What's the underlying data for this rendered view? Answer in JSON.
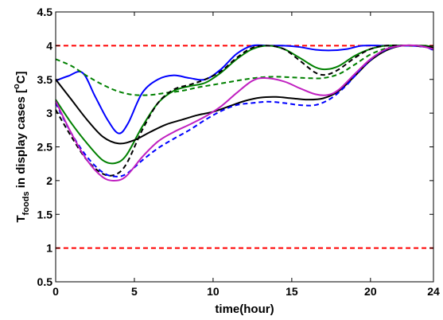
{
  "chart_data": {
    "type": "line",
    "title": "",
    "xlabel": "time(hour)",
    "ylabel": {
      "base": "T",
      "sub": "foods",
      "rest": " in display cases [",
      "sup": "o",
      "unit": "C]"
    },
    "xlim": [
      0,
      24
    ],
    "ylim": [
      0.5,
      4.5
    ],
    "xticks": [
      0,
      5,
      10,
      15,
      20,
      24
    ],
    "yticks": [
      0.5,
      1,
      1.5,
      2,
      2.5,
      3,
      3.5,
      4,
      4.5
    ],
    "xtick_labels": [
      "0",
      "5",
      "10",
      "15",
      "20",
      "24"
    ],
    "ytick_labels": [
      "0.5",
      "1",
      "1.5",
      "2",
      "2.5",
      "3",
      "3.5",
      "4",
      "4.5"
    ],
    "grid": false,
    "legend": "none",
    "series": [
      {
        "color": "#ff0000",
        "style": "dashed",
        "points": [
          [
            0,
            4.0
          ],
          [
            24,
            4.0
          ]
        ]
      },
      {
        "color": "#ff0000",
        "style": "dashed",
        "points": [
          [
            0,
            1.0
          ],
          [
            24,
            1.0
          ]
        ]
      },
      {
        "color": "#0000ff",
        "style": "solid",
        "points": [
          [
            0,
            3.48
          ],
          [
            0.8,
            3.55
          ],
          [
            1.7,
            3.6
          ],
          [
            2.5,
            3.25
          ],
          [
            3.3,
            2.9
          ],
          [
            4.0,
            2.7
          ],
          [
            4.6,
            2.85
          ],
          [
            5.5,
            3.3
          ],
          [
            6.5,
            3.5
          ],
          [
            7.5,
            3.56
          ],
          [
            8.5,
            3.52
          ],
          [
            9.5,
            3.5
          ],
          [
            10.5,
            3.65
          ],
          [
            11.5,
            3.88
          ],
          [
            12.5,
            4.0
          ],
          [
            13.5,
            4.0
          ],
          [
            14.5,
            4.0
          ],
          [
            15.5,
            3.98
          ],
          [
            16.5,
            3.94
          ],
          [
            17.5,
            3.93
          ],
          [
            18.5,
            3.95
          ],
          [
            19.5,
            4.0
          ],
          [
            21,
            4.0
          ],
          [
            22.5,
            4.0
          ],
          [
            23.5,
            3.98
          ],
          [
            24,
            3.95
          ]
        ]
      },
      {
        "color": "#008000",
        "style": "solid",
        "points": [
          [
            0,
            3.2
          ],
          [
            1,
            2.85
          ],
          [
            2,
            2.55
          ],
          [
            3,
            2.3
          ],
          [
            3.8,
            2.26
          ],
          [
            4.5,
            2.38
          ],
          [
            5.5,
            2.8
          ],
          [
            6.5,
            3.15
          ],
          [
            7.5,
            3.33
          ],
          [
            8.5,
            3.4
          ],
          [
            9.5,
            3.45
          ],
          [
            10.5,
            3.6
          ],
          [
            11.5,
            3.8
          ],
          [
            12.5,
            3.95
          ],
          [
            13.5,
            4.0
          ],
          [
            14.5,
            3.95
          ],
          [
            15.5,
            3.82
          ],
          [
            16.5,
            3.68
          ],
          [
            17.2,
            3.65
          ],
          [
            18,
            3.7
          ],
          [
            19,
            3.85
          ],
          [
            20,
            3.95
          ],
          [
            21,
            4.0
          ],
          [
            22.5,
            4.0
          ],
          [
            23.5,
            4.0
          ],
          [
            24,
            3.97
          ]
        ]
      },
      {
        "color": "#008000",
        "style": "dashed",
        "points": [
          [
            0,
            3.8
          ],
          [
            1,
            3.7
          ],
          [
            2,
            3.55
          ],
          [
            3,
            3.42
          ],
          [
            4,
            3.32
          ],
          [
            5,
            3.27
          ],
          [
            6,
            3.27
          ],
          [
            7,
            3.3
          ],
          [
            8,
            3.33
          ],
          [
            9,
            3.38
          ],
          [
            10,
            3.42
          ],
          [
            11,
            3.46
          ],
          [
            12,
            3.5
          ],
          [
            13,
            3.53
          ],
          [
            14,
            3.54
          ],
          [
            15,
            3.53
          ],
          [
            16,
            3.52
          ],
          [
            17,
            3.52
          ],
          [
            18,
            3.58
          ],
          [
            19,
            3.72
          ],
          [
            20,
            3.87
          ],
          [
            21,
            3.96
          ],
          [
            22,
            4.0
          ],
          [
            23,
            4.0
          ],
          [
            24,
            3.97
          ]
        ]
      },
      {
        "color": "#000000",
        "style": "solid",
        "points": [
          [
            0,
            3.5
          ],
          [
            1,
            3.2
          ],
          [
            2,
            2.9
          ],
          [
            3,
            2.65
          ],
          [
            4,
            2.55
          ],
          [
            5,
            2.6
          ],
          [
            6,
            2.72
          ],
          [
            7,
            2.83
          ],
          [
            8,
            2.9
          ],
          [
            9,
            2.97
          ],
          [
            10,
            3.02
          ],
          [
            11,
            3.1
          ],
          [
            12,
            3.18
          ],
          [
            13,
            3.23
          ],
          [
            14,
            3.24
          ],
          [
            15,
            3.22
          ],
          [
            16,
            3.2
          ],
          [
            17,
            3.22
          ],
          [
            18,
            3.33
          ],
          [
            19,
            3.55
          ],
          [
            20,
            3.78
          ],
          [
            21,
            3.93
          ],
          [
            22,
            4.0
          ],
          [
            23,
            4.0
          ],
          [
            24,
            3.97
          ]
        ]
      },
      {
        "color": "#000000",
        "style": "dashed",
        "points": [
          [
            0,
            3.05
          ],
          [
            1,
            2.65
          ],
          [
            2,
            2.3
          ],
          [
            3,
            2.1
          ],
          [
            3.8,
            2.09
          ],
          [
            4.5,
            2.25
          ],
          [
            5.5,
            2.75
          ],
          [
            6.5,
            3.15
          ],
          [
            7.5,
            3.35
          ],
          [
            8.5,
            3.42
          ],
          [
            9.5,
            3.5
          ],
          [
            10.5,
            3.62
          ],
          [
            11.5,
            3.82
          ],
          [
            12.5,
            3.97
          ],
          [
            13.5,
            4.0
          ],
          [
            14.5,
            3.95
          ],
          [
            15.5,
            3.78
          ],
          [
            16.5,
            3.6
          ],
          [
            17.2,
            3.57
          ],
          [
            18,
            3.65
          ],
          [
            19,
            3.82
          ],
          [
            20,
            3.95
          ],
          [
            21,
            4.0
          ],
          [
            22.5,
            4.0
          ],
          [
            23.5,
            3.98
          ],
          [
            24,
            3.94
          ]
        ]
      },
      {
        "color": "#0000ff",
        "style": "dashed",
        "points": [
          [
            0,
            3.15
          ],
          [
            1,
            2.7
          ],
          [
            2,
            2.35
          ],
          [
            3,
            2.12
          ],
          [
            3.8,
            2.06
          ],
          [
            4.5,
            2.1
          ],
          [
            5.5,
            2.3
          ],
          [
            6.5,
            2.48
          ],
          [
            7.5,
            2.62
          ],
          [
            8.5,
            2.75
          ],
          [
            9.5,
            2.9
          ],
          [
            10.5,
            3.03
          ],
          [
            11.5,
            3.12
          ],
          [
            12.5,
            3.15
          ],
          [
            13.5,
            3.17
          ],
          [
            14.5,
            3.15
          ],
          [
            15.5,
            3.12
          ],
          [
            16.5,
            3.12
          ],
          [
            17.5,
            3.22
          ],
          [
            18.5,
            3.42
          ],
          [
            19.5,
            3.68
          ],
          [
            20.5,
            3.88
          ],
          [
            21.5,
            3.98
          ],
          [
            22.5,
            4.0
          ],
          [
            23.5,
            3.98
          ],
          [
            24,
            3.93
          ]
        ]
      },
      {
        "color": "#c020c0",
        "style": "solid",
        "points": [
          [
            0,
            3.18
          ],
          [
            1,
            2.7
          ],
          [
            2,
            2.3
          ],
          [
            3,
            2.05
          ],
          [
            3.8,
            2.0
          ],
          [
            4.5,
            2.07
          ],
          [
            5.5,
            2.35
          ],
          [
            6.5,
            2.58
          ],
          [
            7.5,
            2.72
          ],
          [
            8.5,
            2.83
          ],
          [
            9.5,
            2.95
          ],
          [
            10.5,
            3.1
          ],
          [
            11.5,
            3.3
          ],
          [
            12.5,
            3.48
          ],
          [
            13.3,
            3.52
          ],
          [
            14.5,
            3.47
          ],
          [
            15.5,
            3.37
          ],
          [
            16.5,
            3.28
          ],
          [
            17.3,
            3.27
          ],
          [
            18,
            3.35
          ],
          [
            19,
            3.58
          ],
          [
            20,
            3.8
          ],
          [
            21,
            3.95
          ],
          [
            22,
            4.0
          ],
          [
            23,
            4.0
          ],
          [
            24,
            3.95
          ]
        ]
      }
    ]
  }
}
